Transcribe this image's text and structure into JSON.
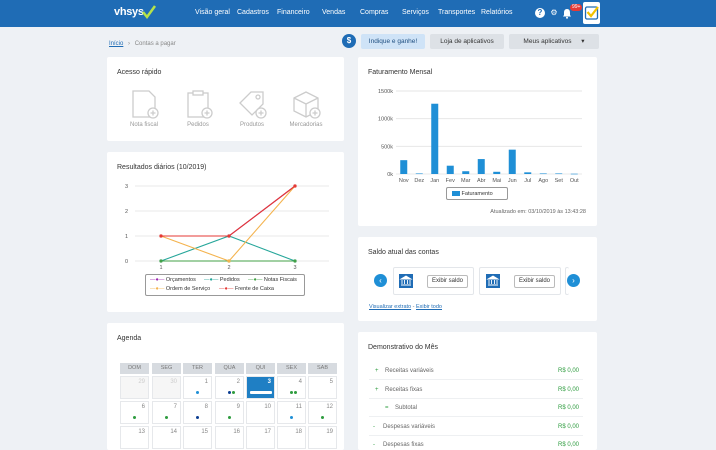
{
  "brand": {
    "name": "vhsys"
  },
  "nav": [
    {
      "label": "Visão geral"
    },
    {
      "label": "Cadastros"
    },
    {
      "label": "Financeiro"
    },
    {
      "label": "Vendas"
    },
    {
      "label": "Compras"
    },
    {
      "label": "Serviços"
    },
    {
      "label": "Transportes"
    },
    {
      "label": "Relatórios"
    }
  ],
  "top_icons": {
    "help": "?",
    "settings": "⚙",
    "bell": "🔔",
    "notifications": "99+"
  },
  "breadcrumb": {
    "home": "Início",
    "sep": "›",
    "current": "Contas a pagar"
  },
  "header_buttons": {
    "dollar": "$",
    "indique": "Indique e ganhe!",
    "loja": "Loja de aplicativos",
    "meus": "Meus aplicativos",
    "meus_caret": "▾"
  },
  "acesso_rapido": {
    "title": "Acesso rápido",
    "items": [
      {
        "label": "Nota fiscal"
      },
      {
        "label": "Pedidos"
      },
      {
        "label": "Produtos"
      },
      {
        "label": "Mercadorias"
      }
    ]
  },
  "resultados": {
    "title": "Resultados diários (10/2019)",
    "legend": [
      "Orçamentos",
      "Pedidos",
      "Notas Fiscais",
      "Ordem de Serviço",
      "Frente de Caixa"
    ]
  },
  "faturamento": {
    "title": "Faturamento Mensal",
    "legend": "Faturamento",
    "updated": "Atualizado em: 03/10/2019 às 13:43:28"
  },
  "saldo": {
    "title": "Saldo atual das contas",
    "exibir": "Exibir saldo",
    "visualizar": "Visualizar extrato",
    "sep": "-",
    "exibir_todo": "Exibir todo"
  },
  "agenda": {
    "title": "Agenda",
    "weekdays": [
      "DOM",
      "SEG",
      "TER",
      "QUA",
      "QUI",
      "SEX",
      "SAB"
    ],
    "weeks": [
      [
        "29",
        "30",
        "1",
        "2",
        "3",
        "4",
        "5"
      ],
      [
        "6",
        "7",
        "8",
        "9",
        "10",
        "11",
        "12"
      ],
      [
        "13",
        "14",
        "15",
        "16",
        "17",
        "18",
        "19"
      ]
    ]
  },
  "demonstrativo": {
    "title": "Demonstrativo do Mês",
    "rows": [
      {
        "bullet": "+",
        "label": "Receitas variáveis",
        "value": "R$ 0,00"
      },
      {
        "bullet": "+",
        "label": "Receitas fixas",
        "value": "R$ 0,00"
      },
      {
        "bullet": "=",
        "label": "Subtotal",
        "value": "R$ 0,00"
      },
      {
        "bullet": "-",
        "label": "Despesas variáveis",
        "value": "R$ 0,00"
      },
      {
        "bullet": "-",
        "label": "Despesas fixas",
        "value": "R$ 0,00"
      }
    ]
  },
  "chart_data": [
    {
      "type": "line",
      "title": "Resultados diários (10/2019)",
      "categories": [
        "1",
        "2",
        "3"
      ],
      "ylim": [
        0,
        3
      ],
      "yticks": [
        "0",
        "1",
        "2",
        "3"
      ],
      "series": [
        {
          "name": "Orçamentos",
          "color": "#9c27b0",
          "values": [
            1,
            1,
            3
          ]
        },
        {
          "name": "Pedidos",
          "color": "#26a69a",
          "values": [
            0,
            1,
            0
          ]
        },
        {
          "name": "Notas Fiscais",
          "color": "#43a047",
          "values": [
            0,
            0,
            0
          ]
        },
        {
          "name": "Ordem de Serviço",
          "color": "#f4b34e",
          "values": [
            1,
            0,
            3
          ]
        },
        {
          "name": "Frente de Caixa",
          "color": "#e53935",
          "values": [
            1,
            1,
            3
          ]
        }
      ]
    },
    {
      "type": "bar",
      "title": "Faturamento Mensal",
      "categories": [
        "Nov",
        "Dez",
        "Jan",
        "Fev",
        "Mar",
        "Abr",
        "Mai",
        "Jun",
        "Jul",
        "Ago",
        "Set",
        "Out"
      ],
      "ylim": [
        0,
        1500000
      ],
      "yticks": [
        "0k",
        "500k",
        "1000k",
        "1500k"
      ],
      "series": [
        {
          "name": "Faturamento",
          "color": "#1f8fd6",
          "values": [
            250000,
            10000,
            1270000,
            150000,
            50000,
            270000,
            40000,
            440000,
            30000,
            10000,
            10000,
            5000
          ]
        }
      ]
    }
  ]
}
